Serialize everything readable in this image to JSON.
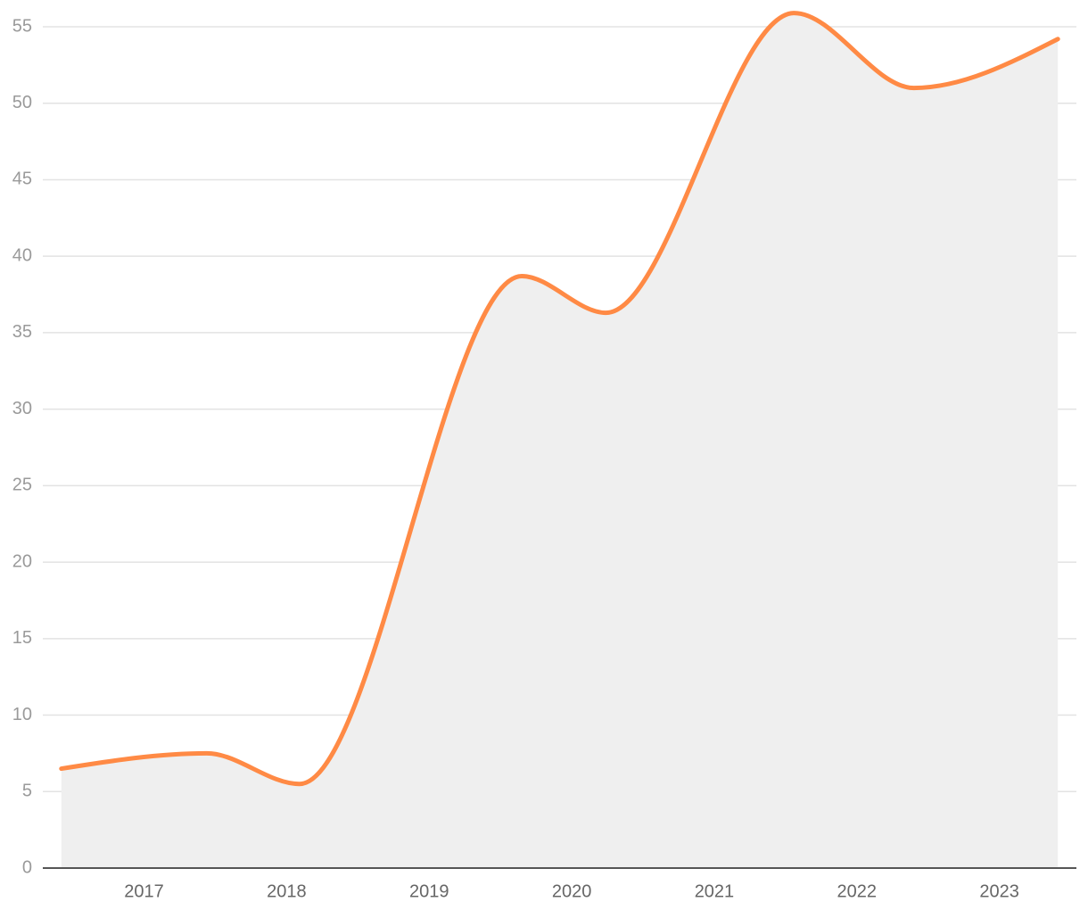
{
  "chart_data": {
    "type": "area",
    "x": [
      2016.42,
      2017.44,
      2018.09,
      2019.65,
      2020.24,
      2021.56,
      2022.4,
      2023.41
    ],
    "values": [
      6.5,
      7.5,
      5.5,
      38.7,
      36.3,
      55.9,
      51,
      54.2
    ],
    "color": "#ff8a45",
    "fill": "#efefef",
    "xlim": [
      2016.29,
      2023.54
    ],
    "xticks": [
      2017,
      2018,
      2019,
      2020,
      2021,
      2022,
      2023
    ],
    "ylim": [
      0,
      55
    ],
    "yticks": [
      0,
      5,
      10,
      15,
      20,
      25,
      30,
      35,
      40,
      45,
      50,
      55
    ],
    "grid": true
  }
}
